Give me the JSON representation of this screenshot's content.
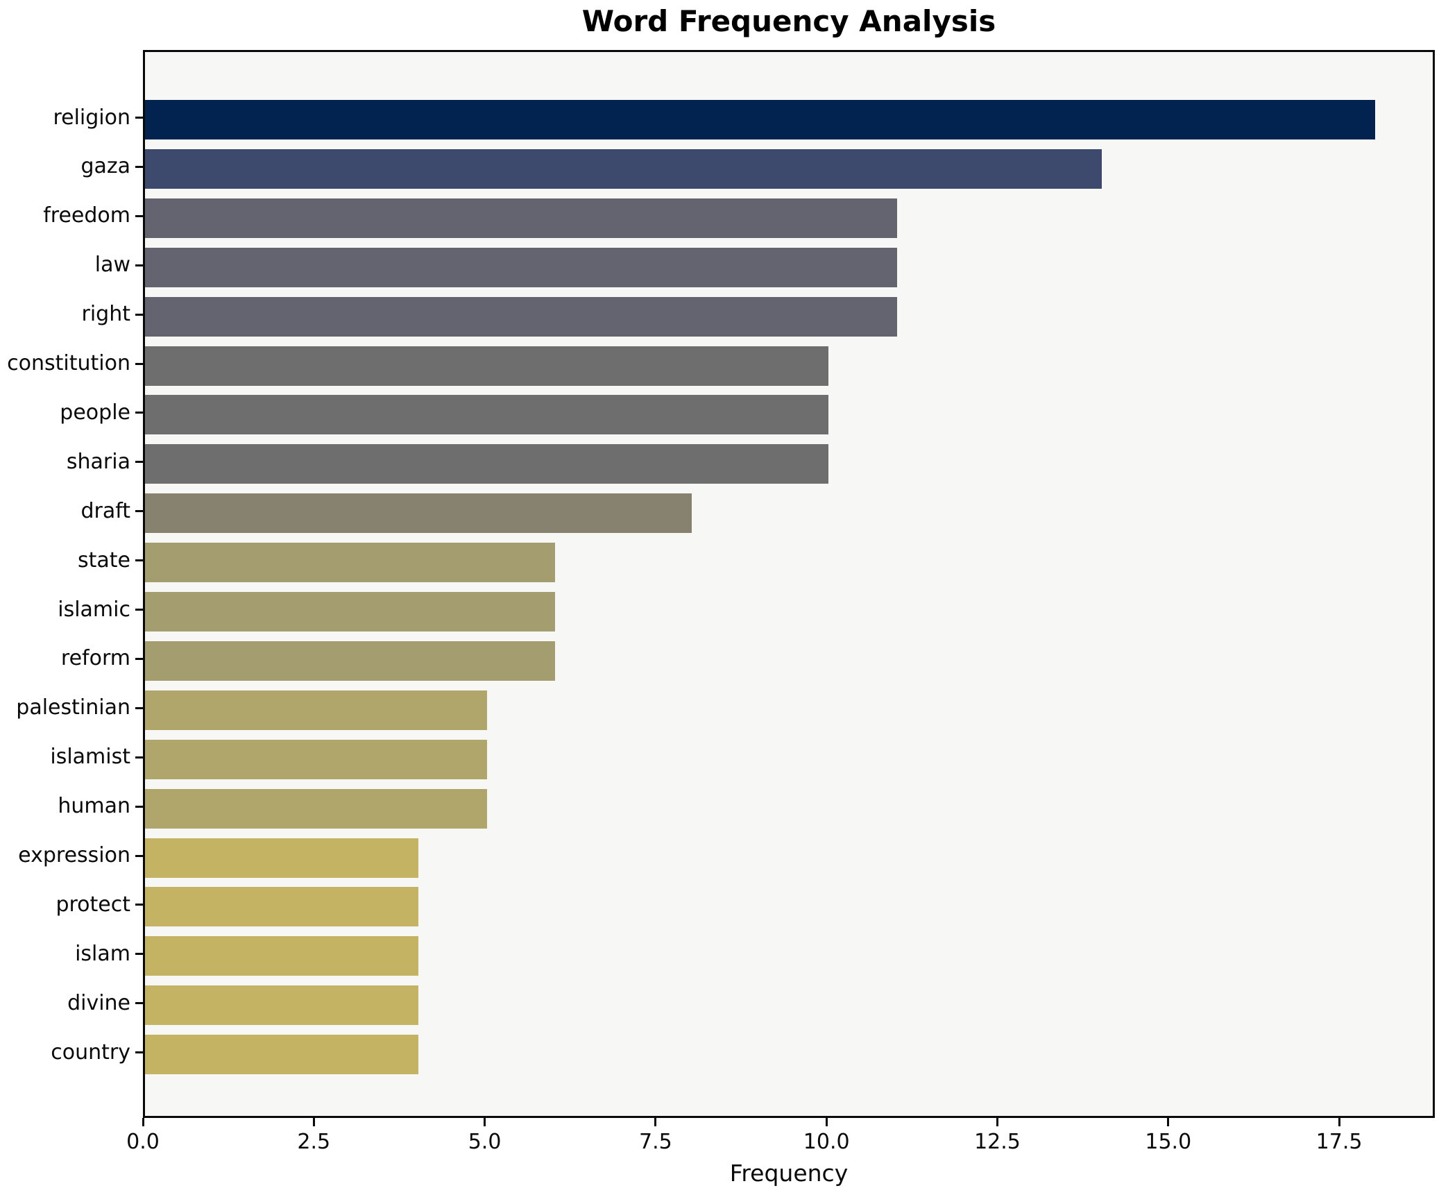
{
  "chart_data": {
    "type": "bar",
    "orientation": "horizontal",
    "title": "Word Frequency Analysis",
    "xlabel": "Frequency",
    "ylabel": "",
    "categories": [
      "religion",
      "gaza",
      "freedom",
      "law",
      "right",
      "constitution",
      "people",
      "sharia",
      "draft",
      "state",
      "islamic",
      "reform",
      "palestinian",
      "islamist",
      "human",
      "expression",
      "protect",
      "islam",
      "divine",
      "country"
    ],
    "values": [
      18,
      14,
      11,
      11,
      11,
      10,
      10,
      10,
      8,
      6,
      6,
      6,
      5,
      5,
      5,
      4,
      4,
      4,
      4,
      4
    ],
    "bar_colors": [
      "#022350",
      "#3d4a6e",
      "#63646f",
      "#63646f",
      "#63646f",
      "#6e6e6e",
      "#6e6e6e",
      "#6e6e6e",
      "#87826f",
      "#a49d6f",
      "#a49d6f",
      "#a49d6f",
      "#b0a66c",
      "#b0a66c",
      "#b0a66c",
      "#c3b363",
      "#c3b363",
      "#c3b363",
      "#c3b363",
      "#c3b363"
    ],
    "xlim": [
      0,
      18.9
    ],
    "xticks": [
      0,
      2.5,
      5,
      7.5,
      10,
      12.5,
      15,
      17.5
    ],
    "xtick_labels": [
      "0.0",
      "2.5",
      "5.0",
      "7.5",
      "10.0",
      "12.5",
      "15.0",
      "17.5"
    ],
    "grid": false,
    "legend": "none",
    "plot_background": "#f7f7f6",
    "figure_background": "#ffffff",
    "spine_color": "#0a0a0a"
  }
}
